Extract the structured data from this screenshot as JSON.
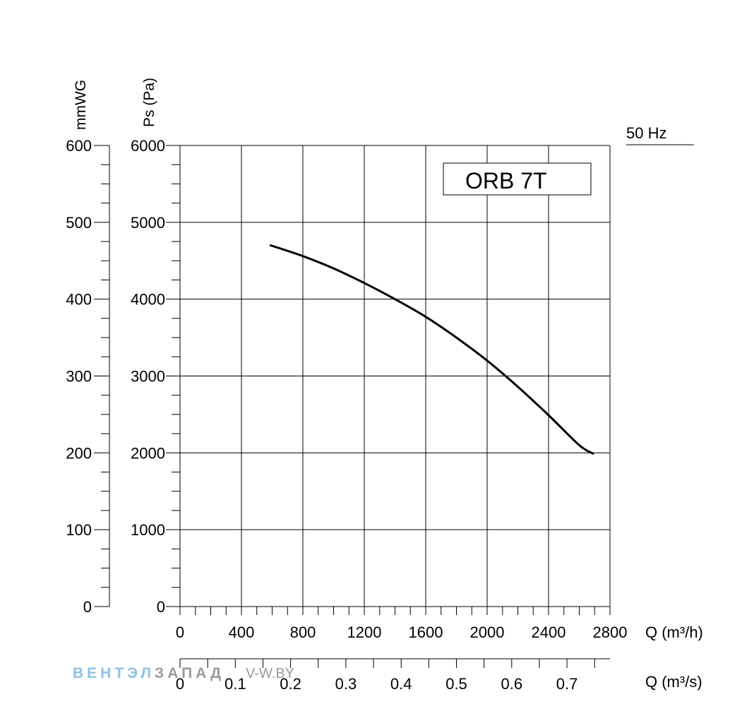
{
  "chart_data": {
    "type": "line",
    "frequency_label": "50 Hz",
    "model_label": "ORB 7T",
    "xlabel": "Q (m³/h)",
    "xlabel_secondary": "Q (m³/s)",
    "ylabel": "Ps (Pa)",
    "ylabel_secondary": "mmWG",
    "xlim": [
      0,
      2800
    ],
    "ylim": [
      0,
      6000
    ],
    "x_ticks": [
      "0",
      "400",
      "800",
      "1200",
      "1600",
      "2000",
      "2400",
      "2800"
    ],
    "y_ticks": [
      "0",
      "1000",
      "2000",
      "3000",
      "4000",
      "5000",
      "6000"
    ],
    "y2_ticks": [
      "0",
      "100",
      "200",
      "300",
      "400",
      "500",
      "600"
    ],
    "x2_ticks": [
      "0",
      "0.1",
      "0.2",
      "0.3",
      "0.4",
      "0.5",
      "0.6",
      "0.7"
    ],
    "grid": true,
    "series": [
      {
        "name": "ORB 7T",
        "color": "#000000",
        "x": [
          590,
          800,
          1000,
          1200,
          1400,
          1600,
          1800,
          2000,
          2200,
          2400,
          2600,
          2690
        ],
        "y": [
          4700,
          4560,
          4400,
          4210,
          4000,
          3770,
          3500,
          3200,
          2860,
          2490,
          2100,
          1990
        ]
      }
    ]
  },
  "watermark": {
    "part1": "ВЕНТЭЛ",
    "part2": "ЗАПАД",
    "part3": "V-W.BY",
    "color_part1": "#8fc1e3",
    "color_part2": "#9a9a9a"
  }
}
